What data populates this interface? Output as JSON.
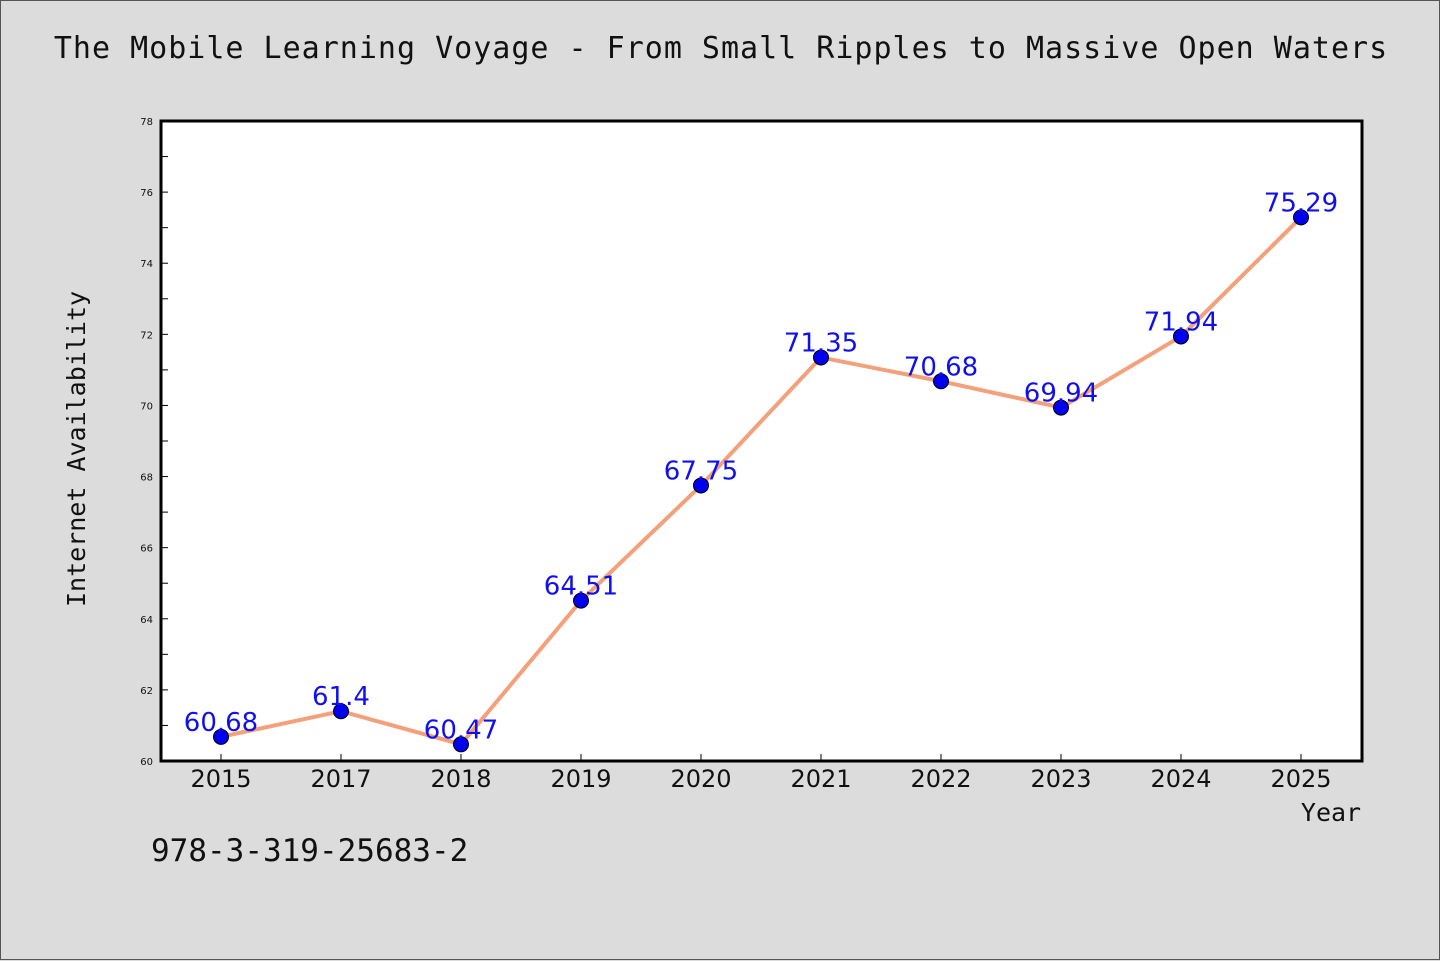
{
  "chart_data": {
    "type": "line",
    "title": "The Mobile Learning Voyage - From Small Ripples to Massive Open Waters",
    "xlabel": "Year",
    "ylabel": "Internet Availability",
    "categories": [
      "2015",
      "2017",
      "2018",
      "2019",
      "2020",
      "2021",
      "2022",
      "2023",
      "2024",
      "2025"
    ],
    "series": [
      {
        "values": [
          60.68,
          61.4,
          60.47,
          64.51,
          67.75,
          71.35,
          70.68,
          69.94,
          71.94,
          75.29
        ],
        "data_labels": [
          "60.68",
          "61.4",
          "60.47",
          "64.51",
          "67.75",
          "71.35",
          "70.68",
          "69.94",
          "71.94",
          "75.29"
        ]
      }
    ],
    "ylim": [
      60,
      78
    ],
    "yticks": [
      "60",
      "62",
      "64",
      "66",
      "68",
      "70",
      "72",
      "74",
      "76",
      "78"
    ],
    "grid": false,
    "colors": {
      "line": "#f4a07a",
      "marker": "#0000ee",
      "label": "#1010ee",
      "background": "#dcdcdc",
      "plot_area": "#ffffff"
    }
  },
  "annotation": "978-3-319-25683-2"
}
